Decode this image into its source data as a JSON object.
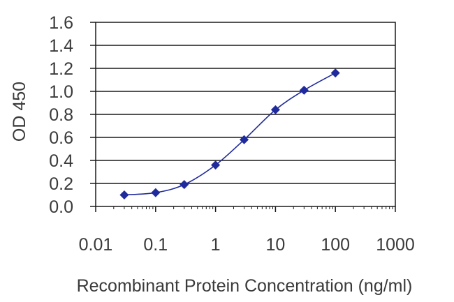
{
  "chart_data": {
    "type": "line",
    "xscale": "log",
    "xlim": [
      0.01,
      1000
    ],
    "ylim": [
      0.0,
      1.6
    ],
    "x_ticks": [
      "0.01",
      "0.1",
      "1",
      "10",
      "100",
      "1000"
    ],
    "y_ticks": [
      "0.0",
      "0.2",
      "0.4",
      "0.6",
      "0.8",
      "1.0",
      "1.2",
      "1.4",
      "1.6"
    ],
    "xlabel": "Recombinant Protein Concentration (ng/ml)",
    "ylabel": "OD 450",
    "grid": "horizontal",
    "legend": "none",
    "series": [
      {
        "x": [
          0.03,
          0.1,
          0.3,
          1,
          3,
          10,
          30,
          100
        ],
        "y": [
          0.1,
          0.12,
          0.19,
          0.36,
          0.58,
          0.84,
          1.01,
          1.16
        ]
      }
    ],
    "colors": {
      "series": "#1f2a9c",
      "grid": "#1a1a1a",
      "text": "#3a3a3a"
    }
  }
}
